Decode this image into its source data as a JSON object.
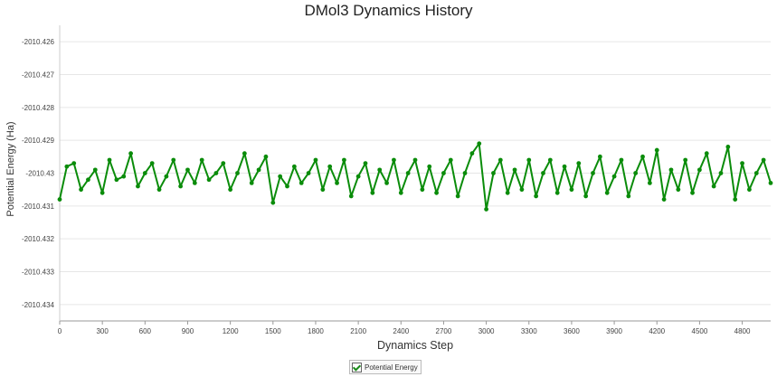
{
  "chart_data": {
    "type": "line",
    "title": "DMol3 Dynamics History",
    "xlabel": "Dynamics Step",
    "ylabel": "Potential Energy (Ha)",
    "xlim": [
      0,
      5000
    ],
    "ylim": [
      -2010.4345,
      -2010.4255
    ],
    "x_ticks": [
      0,
      300,
      600,
      900,
      1200,
      1500,
      1800,
      2100,
      2400,
      2700,
      3000,
      3300,
      3600,
      3900,
      4200,
      4500,
      4800
    ],
    "x_tick_labels": [
      "0",
      "300",
      "600",
      "900",
      "1200",
      "1500",
      "1800",
      "2100",
      "2400",
      "2700",
      "3000",
      "3300",
      "3600",
      "3900",
      "4200",
      "4500",
      "4800"
    ],
    "y_ticks": [
      -2010.426,
      -2010.427,
      -2010.428,
      -2010.429,
      -2010.43,
      -2010.431,
      -2010.432,
      -2010.433,
      -2010.434
    ],
    "y_tick_labels": [
      "-2010.426",
      "-2010.427",
      "-2010.428",
      "-2010.429",
      "-2010.43",
      "-2010.431",
      "-2010.432",
      "-2010.433",
      "-2010.434"
    ],
    "grid": "horizontal",
    "legend_position": "bottom",
    "series": [
      {
        "name": "Potential Energy",
        "color": "#0a8c0a",
        "x": [
          0,
          50,
          100,
          150,
          200,
          250,
          300,
          350,
          400,
          450,
          500,
          550,
          600,
          650,
          700,
          750,
          800,
          850,
          900,
          950,
          1000,
          1050,
          1100,
          1150,
          1200,
          1250,
          1300,
          1350,
          1400,
          1450,
          1500,
          1550,
          1600,
          1650,
          1700,
          1750,
          1800,
          1850,
          1900,
          1950,
          2000,
          2050,
          2100,
          2150,
          2200,
          2250,
          2300,
          2350,
          2400,
          2450,
          2500,
          2550,
          2600,
          2650,
          2700,
          2750,
          2800,
          2850,
          2900,
          2950,
          3000,
          3050,
          3100,
          3150,
          3200,
          3250,
          3300,
          3350,
          3400,
          3450,
          3500,
          3550,
          3600,
          3650,
          3700,
          3750,
          3800,
          3850,
          3900,
          3950,
          4000,
          4050,
          4100,
          4150,
          4200,
          4250,
          4300,
          4350,
          4400,
          4450,
          4500,
          4550,
          4600,
          4650,
          4700,
          4750,
          4800,
          4850,
          4900,
          4950,
          5000
        ],
        "y": [
          -2010.4308,
          -2010.4298,
          -2010.4297,
          -2010.4305,
          -2010.4302,
          -2010.4299,
          -2010.4306,
          -2010.4296,
          -2010.4302,
          -2010.4301,
          -2010.4294,
          -2010.4304,
          -2010.43,
          -2010.4297,
          -2010.4305,
          -2010.4301,
          -2010.4296,
          -2010.4304,
          -2010.4299,
          -2010.4303,
          -2010.4296,
          -2010.4302,
          -2010.43,
          -2010.4297,
          -2010.4305,
          -2010.43,
          -2010.4294,
          -2010.4303,
          -2010.4299,
          -2010.4295,
          -2010.4309,
          -2010.4301,
          -2010.4304,
          -2010.4298,
          -2010.4303,
          -2010.43,
          -2010.4296,
          -2010.4305,
          -2010.4298,
          -2010.4303,
          -2010.4296,
          -2010.4307,
          -2010.4301,
          -2010.4297,
          -2010.4306,
          -2010.4299,
          -2010.4303,
          -2010.4296,
          -2010.4306,
          -2010.43,
          -2010.4296,
          -2010.4305,
          -2010.4298,
          -2010.4306,
          -2010.43,
          -2010.4296,
          -2010.4307,
          -2010.43,
          -2010.4294,
          -2010.4291,
          -2010.4311,
          -2010.43,
          -2010.4296,
          -2010.4306,
          -2010.4299,
          -2010.4305,
          -2010.4296,
          -2010.4307,
          -2010.43,
          -2010.4296,
          -2010.4306,
          -2010.4298,
          -2010.4305,
          -2010.4297,
          -2010.4307,
          -2010.43,
          -2010.4295,
          -2010.4306,
          -2010.4301,
          -2010.4296,
          -2010.4307,
          -2010.43,
          -2010.4295,
          -2010.4303,
          -2010.4293,
          -2010.4308,
          -2010.4299,
          -2010.4305,
          -2010.4296,
          -2010.4306,
          -2010.4299,
          -2010.4294,
          -2010.4304,
          -2010.43,
          -2010.4292,
          -2010.4308,
          -2010.4297,
          -2010.4305,
          -2010.43,
          -2010.4296,
          -2010.4303
        ]
      }
    ]
  }
}
